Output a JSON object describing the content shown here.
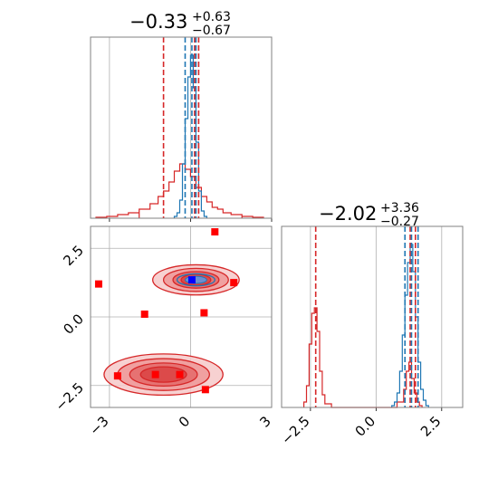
{
  "chart_data": {
    "type": "corner",
    "colors": {
      "blue": "#1f77b4",
      "red": "#d62728",
      "marker_red": "#ff0000",
      "marker_blue": "#0000ff",
      "grid": "#b0b0b0",
      "axis": "#808080"
    },
    "params": [
      {
        "title": {
          "value": "−0.33",
          "plus": "+0.63",
          "minus": "−0.67"
        },
        "xlim": [
          -3.7,
          3.0
        ],
        "ticks": [
          -3,
          0,
          3
        ],
        "tick_labels": [
          "−3",
          "0",
          "3"
        ],
        "blue_quantiles": [
          -0.2,
          0.05,
          0.2
        ],
        "red_quantiles": [
          -1.0,
          0.15,
          0.3
        ],
        "blue_hist": {
          "x": [
            -0.55,
            -0.45,
            -0.35,
            -0.25,
            -0.15,
            -0.05,
            0.05,
            0.15,
            0.25,
            0.35,
            0.45,
            0.55
          ],
          "y": [
            0.01,
            0.03,
            0.1,
            0.3,
            0.55,
            0.78,
            0.9,
            0.72,
            0.42,
            0.15,
            0.04,
            0.01
          ]
        },
        "red_hist": {
          "x": [
            -3.3,
            -2.9,
            -2.5,
            -2.1,
            -1.7,
            -1.3,
            -1.1,
            -0.9,
            -0.7,
            -0.5,
            -0.3,
            -0.1,
            0.1,
            0.3,
            0.5,
            0.7,
            0.9,
            1.1,
            1.3,
            1.7,
            2.1,
            2.5
          ],
          "y": [
            0.005,
            0.01,
            0.02,
            0.03,
            0.05,
            0.08,
            0.12,
            0.15,
            0.2,
            0.26,
            0.3,
            0.27,
            0.23,
            0.17,
            0.12,
            0.09,
            0.06,
            0.05,
            0.03,
            0.02,
            0.01,
            0.005
          ]
        }
      },
      {
        "title": {
          "value": "−2.02",
          "plus": "+3.36",
          "minus": "−0.27"
        },
        "xlim": [
          -3.6,
          3.3
        ],
        "ticks": [
          -2.5,
          0,
          2.5
        ],
        "tick_labels": [
          "−2.5",
          "0.0",
          "2.5"
        ],
        "blue_quantiles": [
          1.1,
          1.35,
          1.6
        ],
        "red_quantiles": [
          -2.3,
          1.3,
          1.5
        ],
        "blue_hist": {
          "x": [
            0.65,
            0.75,
            0.85,
            0.95,
            1.05,
            1.15,
            1.25,
            1.35,
            1.45,
            1.55,
            1.65,
            1.75,
            1.85,
            1.95
          ],
          "y": [
            0.01,
            0.03,
            0.08,
            0.2,
            0.4,
            0.62,
            0.8,
            0.9,
            0.75,
            0.5,
            0.25,
            0.1,
            0.04,
            0.01
          ]
        },
        "red_hist": {
          "x": [
            -2.7,
            -2.6,
            -2.5,
            -2.4,
            -2.3,
            -2.2,
            -2.1,
            -2.0,
            -1.9,
            1.0,
            1.1,
            1.2,
            1.3,
            1.4,
            1.5,
            1.6,
            1.7
          ],
          "y": [
            0.03,
            0.12,
            0.35,
            0.52,
            0.55,
            0.42,
            0.2,
            0.07,
            0.02,
            0.03,
            0.1,
            0.2,
            0.25,
            0.16,
            0.08,
            0.03,
            0.01
          ]
        }
      }
    ],
    "scatter": {
      "xlim": [
        -3.7,
        3.0
      ],
      "ylim": [
        -3.3,
        3.3
      ],
      "yticks": [
        -2.5,
        0,
        2.5
      ],
      "ytick_labels": [
        "−2.5",
        "0.0",
        "2.5"
      ],
      "red_markers": [
        {
          "x": 0.9,
          "y": 3.1
        },
        {
          "x": 1.6,
          "y": 1.25
        },
        {
          "x": -3.4,
          "y": 1.2
        },
        {
          "x": -1.7,
          "y": 0.1
        },
        {
          "x": 0.5,
          "y": 0.15
        },
        {
          "x": -2.7,
          "y": -2.15
        },
        {
          "x": -1.3,
          "y": -2.1
        },
        {
          "x": -0.4,
          "y": -2.1
        },
        {
          "x": 0.55,
          "y": -2.65
        }
      ],
      "blue_marker": {
        "x": 0.05,
        "y": 1.35
      },
      "contours": [
        {
          "cx": 0.2,
          "cy": 1.35,
          "rx": [
            1.6,
            1.2,
            0.85,
            0.55
          ],
          "ry": [
            0.55,
            0.42,
            0.3,
            0.2
          ]
        },
        {
          "cx": -1.0,
          "cy": -2.1,
          "rx": [
            2.2,
            1.7,
            1.25,
            0.85
          ],
          "ry": [
            0.75,
            0.58,
            0.42,
            0.28
          ]
        }
      ]
    }
  }
}
